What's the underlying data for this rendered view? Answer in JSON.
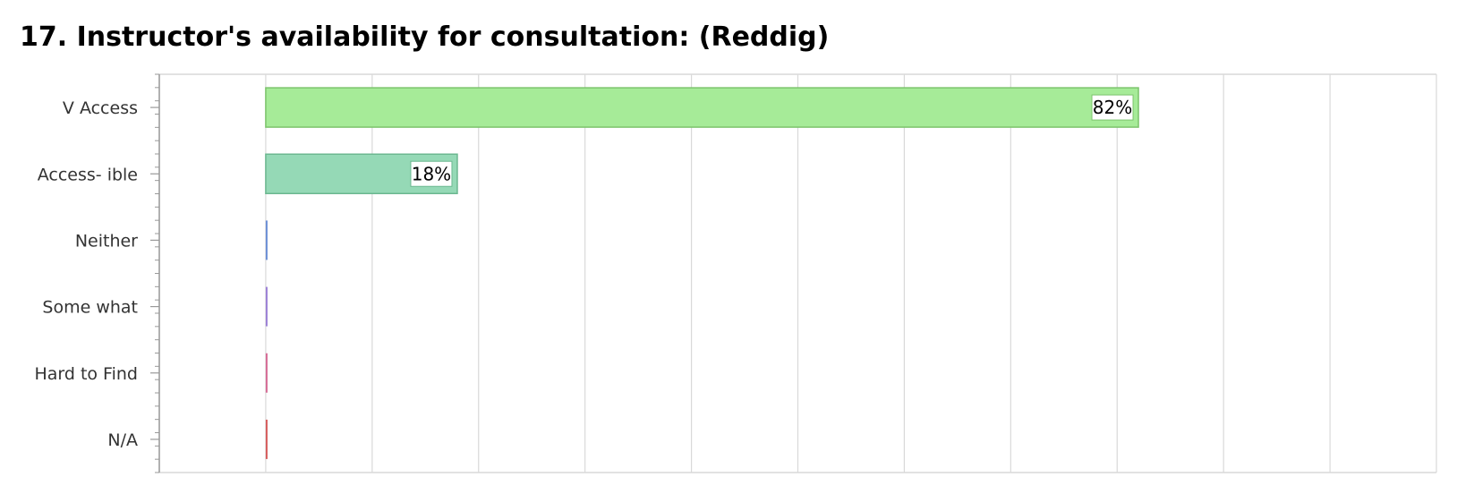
{
  "title": "17. Instructor's availability for consultation: (Reddig)",
  "chart_data": {
    "type": "bar",
    "orientation": "horizontal",
    "categories": [
      "V Access",
      "Access- ible",
      "Neither",
      "Some what",
      "Hard to Find",
      "N/A"
    ],
    "values": [
      82,
      18,
      0,
      0,
      0,
      0
    ],
    "data_labels": [
      "82%",
      "18%",
      "",
      "",
      "",
      ""
    ],
    "xlim": [
      -10,
      110
    ],
    "grid": true,
    "legend": "none",
    "colors": {
      "fills": [
        "#a6eb98",
        "#95d9b6",
        "#6b8fd6",
        "#9b7fd6",
        "#d66b95",
        "#d65b5b"
      ],
      "strokes": [
        "#7cc46c",
        "#6cb890",
        "#4a6fc2",
        "#7f5fc2",
        "#c24a7a",
        "#c23b3b"
      ],
      "grid": "#d9d9d9",
      "axis": "#999999"
    }
  }
}
